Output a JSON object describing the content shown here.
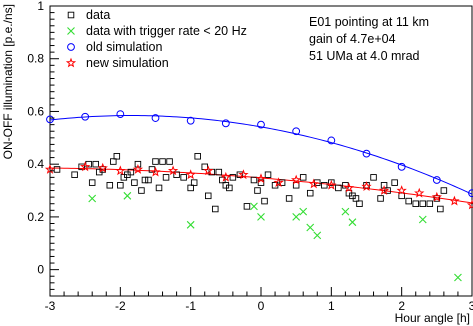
{
  "chart_data": {
    "type": "scatter",
    "title": "",
    "xlabel": "Hour angle [h]",
    "ylabel": "ON-OFF illumination [p.e./ns]",
    "xlim": [
      -3,
      3
    ],
    "ylim": [
      -0.1,
      1.0
    ],
    "xticks": [
      -3,
      -2,
      -1,
      0,
      1,
      2,
      3
    ],
    "xtick_labels": [
      "-3",
      "-2",
      "-1",
      "0",
      "1",
      "2",
      "3"
    ],
    "yticks": [
      0,
      0.2,
      0.4,
      0.6,
      0.8,
      1
    ],
    "ytick_labels": [
      "0",
      "0.2",
      "0.4",
      "0.6",
      "0.8",
      "1"
    ],
    "grid": false,
    "legend_position": "top-left",
    "annotations": [
      "E01 pointing at 11 km",
      "gain of 4.7e+04",
      "51 UMa at 4.0 mrad"
    ],
    "series": [
      {
        "name": "data",
        "marker": "open-square",
        "color": "#000000",
        "x": [
          -2.9,
          -2.65,
          -2.55,
          -2.45,
          -2.4,
          -2.35,
          -2.3,
          -2.25,
          -2.15,
          -2.1,
          -2.05,
          -2.0,
          -1.95,
          -1.9,
          -1.85,
          -1.8,
          -1.75,
          -1.7,
          -1.65,
          -1.6,
          -1.55,
          -1.5,
          -1.45,
          -1.4,
          -1.35,
          -1.3,
          -1.2,
          -1.1,
          -1.0,
          -0.95,
          -0.9,
          -0.8,
          -0.75,
          -0.7,
          -0.65,
          -0.6,
          -0.55,
          -0.5,
          -0.45,
          -0.4,
          -0.3,
          -0.2,
          -0.1,
          -0.05,
          0.0,
          0.05,
          0.1,
          0.2,
          0.3,
          0.4,
          0.5,
          0.6,
          0.7,
          0.8,
          0.9,
          1.0,
          1.1,
          1.2,
          1.25,
          1.3,
          1.35,
          1.4,
          1.5,
          1.6,
          1.7,
          1.75,
          1.8,
          1.9,
          2.0,
          2.1,
          2.2,
          2.3,
          2.4,
          2.5,
          2.55,
          2.6
        ],
        "y": [
          0.38,
          0.36,
          0.39,
          0.4,
          0.33,
          0.4,
          0.37,
          0.38,
          0.32,
          0.41,
          0.43,
          0.32,
          0.35,
          0.36,
          0.37,
          0.33,
          0.4,
          0.3,
          0.34,
          0.34,
          0.38,
          0.41,
          0.31,
          0.41,
          0.35,
          0.41,
          0.36,
          0.35,
          0.31,
          0.33,
          0.43,
          0.39,
          0.28,
          0.37,
          0.23,
          0.37,
          0.34,
          0.32,
          0.31,
          0.35,
          0.36,
          0.24,
          0.34,
          0.3,
          0.33,
          0.26,
          0.36,
          0.32,
          0.33,
          0.27,
          0.32,
          0.35,
          0.29,
          0.33,
          0.32,
          0.33,
          0.31,
          0.32,
          0.29,
          0.28,
          0.27,
          0.25,
          0.32,
          0.35,
          0.27,
          0.32,
          0.3,
          0.33,
          0.28,
          0.26,
          0.25,
          0.25,
          0.25,
          0.27,
          0.23,
          0.3
        ]
      },
      {
        "name": "data with trigger rate < 20 Hz",
        "marker": "x",
        "color": "#33dd33",
        "x": [
          -2.4,
          -1.9,
          -1.0,
          -0.1,
          0.0,
          0.5,
          0.6,
          0.7,
          0.8,
          1.2,
          1.3,
          2.3,
          2.8
        ],
        "y": [
          0.27,
          0.28,
          0.17,
          0.24,
          0.2,
          0.2,
          0.22,
          0.16,
          0.13,
          0.22,
          0.18,
          0.19,
          -0.03
        ]
      },
      {
        "name": "old simulation",
        "marker": "open-circle",
        "color": "#0000ff",
        "x": [
          -3.0,
          -2.5,
          -2.0,
          -1.5,
          -1.0,
          -0.5,
          0.0,
          0.5,
          1.0,
          1.5,
          2.0,
          2.5,
          3.0
        ],
        "y": [
          0.57,
          0.58,
          0.59,
          0.575,
          0.565,
          0.555,
          0.55,
          0.525,
          0.49,
          0.44,
          0.39,
          0.34,
          0.29
        ]
      },
      {
        "name": "new simulation",
        "marker": "star",
        "color": "#ff0000",
        "x": [
          -3.0,
          -2.5,
          -2.25,
          -2.0,
          -1.75,
          -1.5,
          -1.25,
          -1.0,
          -0.75,
          -0.5,
          -0.25,
          0.0,
          0.25,
          0.5,
          0.75,
          1.0,
          1.25,
          1.5,
          1.75,
          2.0,
          2.25,
          2.5,
          2.75,
          3.0
        ],
        "y": [
          0.38,
          0.39,
          0.385,
          0.375,
          0.38,
          0.37,
          0.375,
          0.36,
          0.375,
          0.35,
          0.36,
          0.345,
          0.33,
          0.34,
          0.325,
          0.32,
          0.31,
          0.315,
          0.3,
          0.3,
          0.29,
          0.275,
          0.26,
          0.245
        ]
      }
    ]
  }
}
